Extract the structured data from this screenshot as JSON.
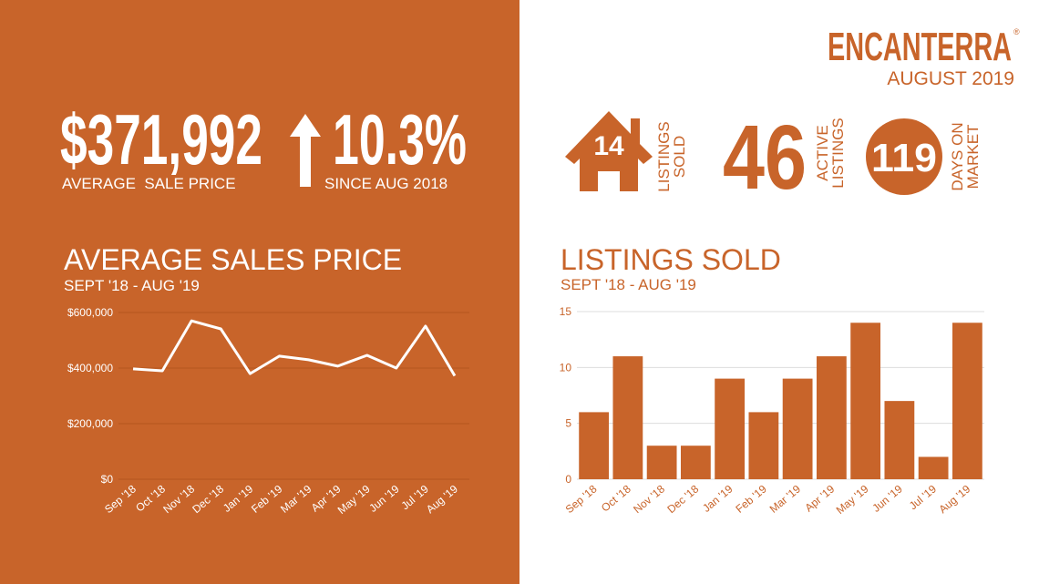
{
  "header": {
    "brand": "ENCANTERRA",
    "registered": "®",
    "date": "AUGUST 2019"
  },
  "stats": {
    "price": {
      "value": "$371,992",
      "label": "AVERAGE  SALE PRICE"
    },
    "change": {
      "value": "10.3%",
      "label": "SINCE AUG 2018"
    },
    "sold": {
      "value": "14",
      "label": [
        "LISTINGS",
        "SOLD"
      ]
    },
    "active": {
      "value": "46",
      "label": [
        "ACTIVE",
        "LISTINGS"
      ]
    },
    "days": {
      "value": "119",
      "label": [
        "DAYS ON",
        "MARKET"
      ]
    }
  },
  "chart_data": [
    {
      "type": "line",
      "title": "AVERAGE SALES PRICE",
      "subtitle": "SEPT '18 - AUG '19",
      "categories": [
        "Sep '18",
        "Oct '18",
        "Nov '18",
        "Dec '18",
        "Jan '19",
        "Feb '19",
        "Mar '19",
        "Apr '19",
        "May '19",
        "Jun '19",
        "Jul '19",
        "Aug '19"
      ],
      "values": [
        397000,
        390000,
        570000,
        541000,
        380000,
        443000,
        430000,
        407000,
        446000,
        400000,
        551000,
        371992
      ],
      "color": "#ffffff",
      "ylim": [
        0,
        600000
      ],
      "yticks": [
        {
          "value": 0,
          "label": "$0"
        },
        {
          "value": 200000,
          "label": "$200,000"
        },
        {
          "value": 400000,
          "label": "$400,000"
        },
        {
          "value": 600000,
          "label": "$600,000"
        }
      ],
      "grid": true
    },
    {
      "type": "bar",
      "title": "LISTINGS SOLD",
      "subtitle": "SEPT '18 - AUG '19",
      "categories": [
        "Sep '18",
        "Oct '18",
        "Nov '18",
        "Dec '18",
        "Jan '19",
        "Feb '19",
        "Mar '19",
        "Apr '19",
        "May '19",
        "Jun '19",
        "Jul '19",
        "Aug '19"
      ],
      "values": [
        6,
        11,
        3,
        3,
        9,
        6,
        9,
        11,
        14,
        7,
        2,
        14
      ],
      "color": "#c8642a",
      "ylim": [
        0,
        15
      ],
      "yticks": [
        0,
        5,
        10,
        15
      ],
      "grid": true
    }
  ]
}
